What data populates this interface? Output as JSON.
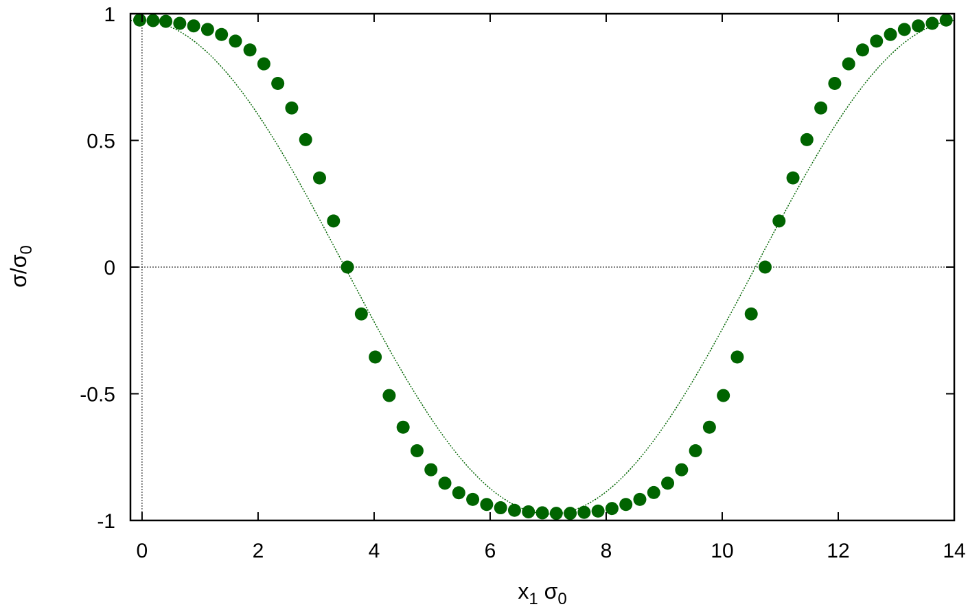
{
  "chart_data": {
    "type": "scatter",
    "title": "",
    "xlabel": {
      "base": "x",
      "sub": "1",
      "sym": " σ",
      "sym_sub": "0"
    },
    "ylabel": {
      "base": "σ/σ",
      "sub": "0"
    },
    "xlim": [
      -0.2,
      14.0
    ],
    "ylim": [
      -1,
      1
    ],
    "xticks": [
      0,
      2,
      4,
      6,
      8,
      10,
      12,
      14
    ],
    "yticks": [
      -1,
      -0.5,
      0,
      0.5,
      1
    ],
    "xtick_labels": [
      "0",
      "2",
      "4",
      "6",
      "8",
      "10",
      "12",
      "14"
    ],
    "ytick_labels": [
      "-1",
      "-0.5",
      "0",
      "0.5",
      "1"
    ],
    "grid": false,
    "legend": "none",
    "colors": {
      "points": "#006400",
      "curve": "#006400",
      "zero_lines": "#000000"
    },
    "series": [
      {
        "style": "points",
        "x": [
          -0.04,
          0.19,
          0.41,
          0.65,
          0.89,
          1.13,
          1.37,
          1.61,
          1.86,
          2.1,
          2.34,
          2.58,
          2.82,
          3.06,
          3.3,
          3.54,
          3.78,
          4.02,
          4.26,
          4.5,
          4.74,
          4.98,
          5.22,
          5.46,
          5.7,
          5.94,
          6.18,
          6.42,
          6.66,
          6.9,
          7.14,
          7.38,
          7.62,
          7.86,
          8.1,
          8.34,
          8.58,
          8.82,
          9.06,
          9.3,
          9.54,
          9.78,
          10.02,
          10.26,
          10.5,
          10.74,
          10.98,
          11.22,
          11.46,
          11.7,
          11.94,
          12.18,
          12.42,
          12.66,
          12.9,
          13.14,
          13.38,
          13.62,
          13.86
        ],
        "y": [
          0.975,
          0.973,
          0.97,
          0.962,
          0.952,
          0.938,
          0.918,
          0.892,
          0.857,
          0.802,
          0.725,
          0.628,
          0.503,
          0.352,
          0.182,
          0.0,
          -0.185,
          -0.355,
          -0.507,
          -0.632,
          -0.725,
          -0.8,
          -0.853,
          -0.891,
          -0.917,
          -0.937,
          -0.95,
          -0.96,
          -0.966,
          -0.97,
          -0.972,
          -0.972,
          -0.968,
          -0.963,
          -0.953,
          -0.937,
          -0.917,
          -0.89,
          -0.853,
          -0.8,
          -0.725,
          -0.632,
          -0.507,
          -0.355,
          -0.185,
          0.0,
          0.182,
          0.352,
          0.503,
          0.628,
          0.725,
          0.802,
          0.857,
          0.892,
          0.918,
          0.938,
          0.952,
          0.962,
          0.975
        ]
      },
      {
        "style": "dotted-line",
        "function": "cos",
        "amplitude": 0.975,
        "period": 14.15,
        "offset": -0.04
      }
    ]
  }
}
